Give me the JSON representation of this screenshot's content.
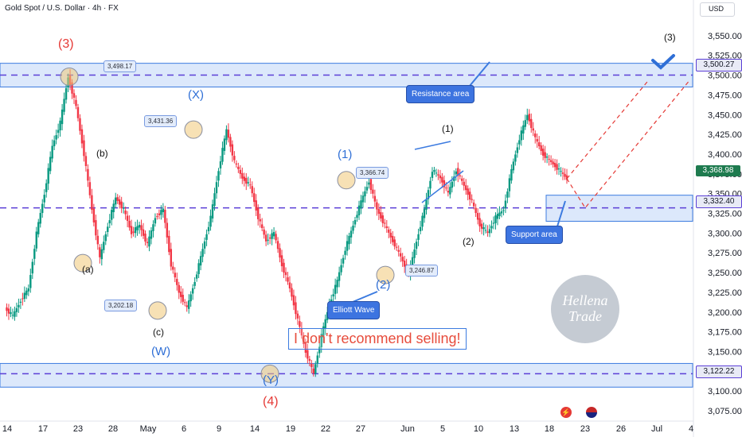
{
  "header": {
    "title": "Gold Spot / U.S. Dollar · 4h · FX",
    "currency": "USD"
  },
  "chart_data": {
    "type": "line",
    "title": "Gold Spot / U.S. Dollar · 4h · FX",
    "ylabel": "USD",
    "ylim": [
      3062,
      3575
    ],
    "x_ticks": [
      "14",
      "17",
      "23",
      "28",
      "May",
      "6",
      "9",
      "14",
      "19",
      "22",
      "27",
      "Jun",
      "5",
      "10",
      "13",
      "18",
      "23",
      "26",
      "Jul",
      "4"
    ],
    "y_ticks": [
      "3,550.00",
      "3,525.00",
      "3,500.00",
      "3,475.00",
      "3,450.00",
      "3,425.00",
      "3,400.00",
      "3,375.00",
      "3,350.00",
      "3,325.00",
      "3,300.00",
      "3,275.00",
      "3,250.00",
      "3,225.00",
      "3,200.00",
      "3,175.00",
      "3,150.00",
      "3,125.00",
      "3,100.00",
      "3,075.00"
    ],
    "series": [
      {
        "values": [
          3205,
          3195,
          3215,
          3230,
          3300,
          3350,
          3410,
          3440,
          3498,
          3460,
          3400,
          3330,
          3268,
          3310,
          3345,
          3330,
          3300,
          3310,
          3285,
          3320,
          3330,
          3260,
          3225,
          3205,
          3240,
          3280,
          3320,
          3380,
          3431,
          3390,
          3370,
          3360,
          3320,
          3290,
          3300,
          3260,
          3230,
          3190,
          3150,
          3122,
          3170,
          3210,
          3240,
          3280,
          3310,
          3340,
          3366,
          3330,
          3310,
          3290,
          3270,
          3247,
          3290,
          3330,
          3380,
          3370,
          3350,
          3380,
          3360,
          3340,
          3310,
          3300,
          3320,
          3330,
          3380,
          3420,
          3450,
          3420,
          3400,
          3390,
          3380,
          3369
        ]
      }
    ],
    "projection": [
      3369,
      3332,
      3500
    ],
    "zones": {
      "resistance": [
        3485,
        3515
      ],
      "support": [
        3315,
        3348
      ],
      "bottom": [
        3105,
        3135
      ]
    },
    "price_tags": {
      "last": "3,368.98",
      "support_line": "3,332.40",
      "resistance_line": "3,500.27",
      "bottom_line": "3,122.22"
    },
    "box_labels": [
      "3,498.17",
      "3,431.36",
      "3,366.74",
      "3,246.87",
      "3,202.18"
    ],
    "waves": {
      "red": [
        "(3)",
        "(4)"
      ],
      "blue": [
        "(X)",
        "(W)",
        "(Y)",
        "(1)",
        "(2)"
      ],
      "black": [
        "(b)",
        "(a)",
        "(c)",
        "(1)",
        "(2)",
        "(3)"
      ]
    },
    "annotations": {
      "resistance": "Resistance area",
      "support": "Support area",
      "elliott": "Elliott Wave",
      "warning": "I don't recommend selling!"
    },
    "watermark": [
      "Hellena",
      "Trade"
    ],
    "colors": {
      "up": "#089981",
      "down": "#f23645",
      "zone": "#dce8fb",
      "zone_border": "#3c7be0",
      "dash": "#5b3fd6"
    }
  }
}
